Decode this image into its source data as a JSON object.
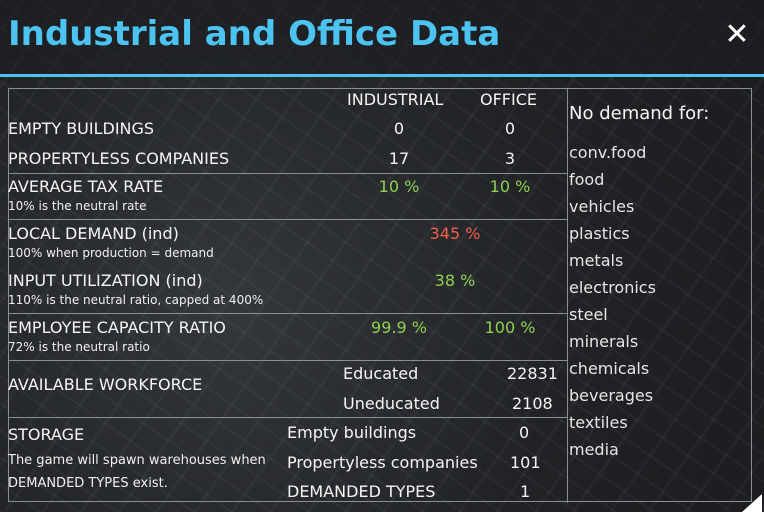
{
  "window": {
    "title": "Industrial and Office Data",
    "close_label": "✕"
  },
  "columns": {
    "industrial": "INDUSTRIAL",
    "office": "OFFICE"
  },
  "rows": {
    "empty_buildings": {
      "label": "EMPTY BUILDINGS",
      "industrial": "0",
      "office": "0"
    },
    "propertyless": {
      "label": "PROPERTYLESS COMPANIES",
      "industrial": "17",
      "office": "3"
    },
    "tax": {
      "label": "AVERAGE TAX RATE",
      "note": "10% is the neutral rate",
      "industrial": "10 %",
      "office": "10 %"
    },
    "local_demand": {
      "label": "LOCAL DEMAND (ind)",
      "note": "100% when production = demand",
      "value": "345 %"
    },
    "input_util": {
      "label": "INPUT UTILIZATION (ind)",
      "note": "110% is the neutral ratio, capped at 400%",
      "value": "38 %"
    },
    "employee_ratio": {
      "label": "EMPLOYEE CAPACITY RATIO",
      "note": "72% is the neutral ratio",
      "industrial": "99.9 %",
      "office": "100 %"
    }
  },
  "workforce": {
    "label": "AVAILABLE WORKFORCE",
    "educated_label": "Educated",
    "educated_value": "22831",
    "uneducated_label": "Uneducated",
    "uneducated_value": "2108"
  },
  "storage": {
    "label": "STORAGE",
    "note_line1": "The game will spawn warehouses when",
    "note_line2": "DEMANDED TYPES exist.",
    "empty_label": "Empty buildings",
    "empty_value": "0",
    "propertyless_label": "Propertyless companies",
    "propertyless_value": "101",
    "demanded_label": "DEMANDED TYPES",
    "demanded_value": "1"
  },
  "no_demand": {
    "title": "No demand for:",
    "items": [
      "conv.food",
      "food",
      "vehicles",
      "plastics",
      "metals",
      "electronics",
      "steel",
      "minerals",
      "chemicals",
      "beverages",
      "textiles",
      "media"
    ]
  },
  "colors": {
    "accent": "#4cc3f0",
    "good": "#8fd14f",
    "bad": "#f0604c"
  },
  "icons": {
    "close": "close-icon",
    "resize": "resize-corner-icon"
  }
}
